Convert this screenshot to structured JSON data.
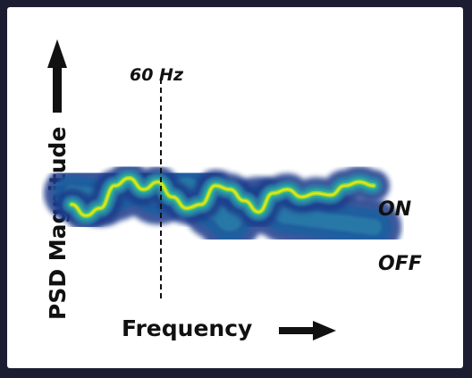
{
  "chart_data": {
    "type": "heatmap",
    "title": "",
    "xlabel": "Frequency",
    "ylabel": "PSD Magnitude",
    "annotations": {
      "vline_label": "60 Hz",
      "on_label": "ON",
      "off_label": "OFF"
    },
    "grid": false,
    "legend": "none",
    "colormap": [
      "#1e3a8a",
      "#1f5fa0",
      "#2a7fa8",
      "#2fb59a",
      "#8ed63a",
      "#e8e51a"
    ],
    "series": [
      {
        "name": "ON",
        "center": [
          0.58,
          0.57,
          0.55,
          0.58,
          0.62,
          0.6,
          0.56,
          0.6,
          0.62,
          0.58,
          0.48,
          0.42,
          0.5,
          0.52,
          0.5,
          0.46,
          0.45,
          0.44,
          0.43,
          0.42,
          0.41,
          0.4
        ]
      },
      {
        "name": "OFF",
        "center": [
          0.52,
          0.46,
          0.5,
          0.62,
          0.66,
          0.6,
          0.64,
          0.56,
          0.5,
          0.52,
          0.62,
          0.6,
          0.54,
          0.48,
          0.58,
          0.6,
          0.56,
          0.58,
          0.57,
          0.62,
          0.64,
          0.62
        ]
      }
    ]
  }
}
